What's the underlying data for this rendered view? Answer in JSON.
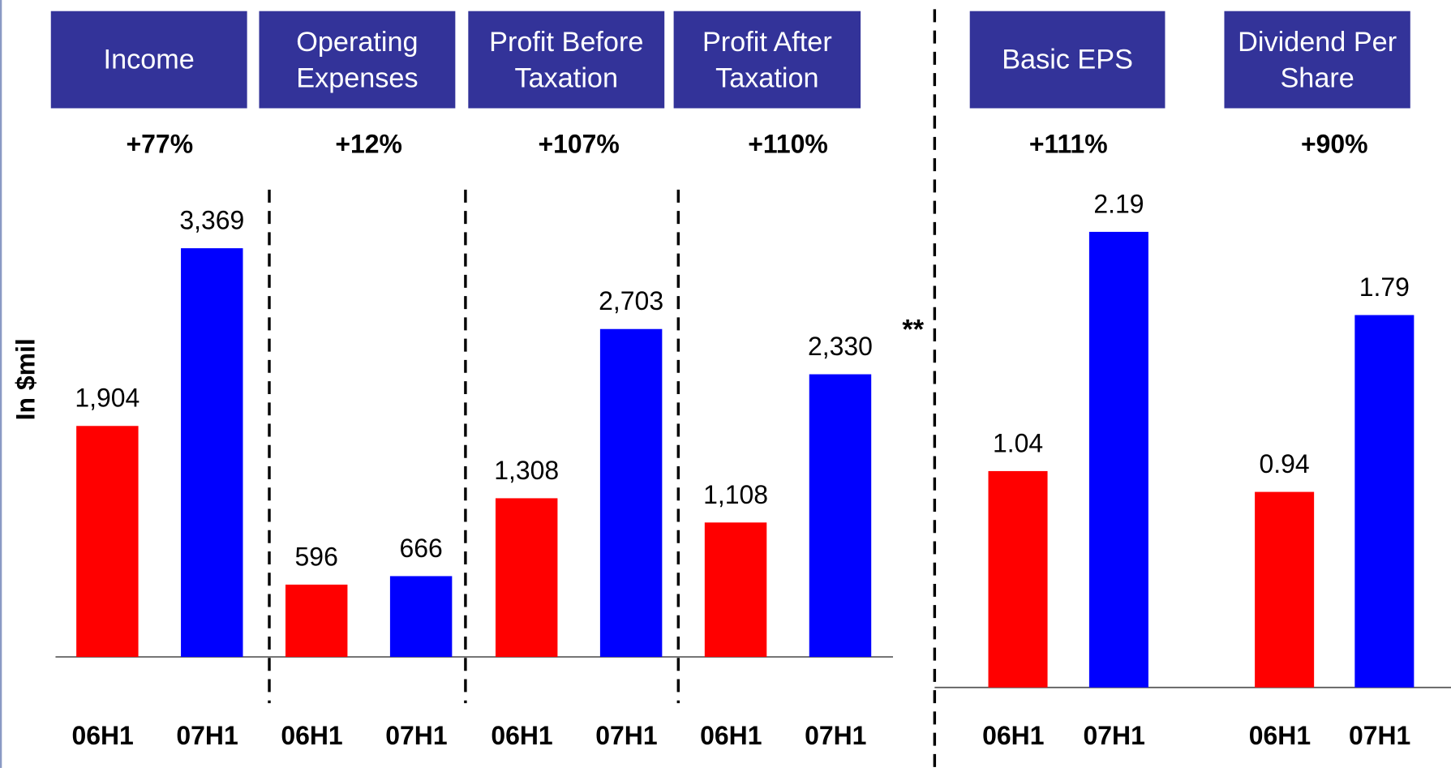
{
  "chart_data": [
    {
      "type": "bar",
      "y_label": "In $mil",
      "annotation": "**",
      "colors": [
        "#ff0000",
        "#0000ff"
      ],
      "ylim": [
        0,
        5400
      ],
      "groups": [
        {
          "title": "Income",
          "change": "+77%",
          "categories": [
            "06H1",
            "07H1"
          ],
          "values": [
            1904,
            3369
          ],
          "value_labels": [
            "1,904",
            "3,369"
          ]
        },
        {
          "title": "Operating Expenses",
          "change": "+12%",
          "categories": [
            "06H1",
            "07H1"
          ],
          "values": [
            596,
            666
          ]
        },
        {
          "title": "Profit Before Taxation",
          "change": "+107%",
          "categories": [
            "06H1",
            "07H1"
          ],
          "values": [
            1308,
            2703
          ],
          "value_labels": [
            "1,308",
            "2,703"
          ]
        },
        {
          "title": "Profit After Taxation",
          "change": "+110%",
          "categories": [
            "06H1",
            "07H1"
          ],
          "values": [
            1108,
            2330
          ],
          "value_labels": [
            "1,108",
            "2,330"
          ]
        }
      ]
    },
    {
      "type": "bar",
      "colors": [
        "#ff0000",
        "#0000ff"
      ],
      "ylim": [
        0,
        3.3
      ],
      "groups": [
        {
          "title": "Basic EPS",
          "change": "+111%",
          "categories": [
            "06H1",
            "07H1"
          ],
          "values": [
            1.04,
            2.19
          ]
        },
        {
          "title": "Dividend Per Share",
          "change": "+90%",
          "categories": [
            "06H1",
            "07H1"
          ],
          "values": [
            0.94,
            1.79
          ]
        }
      ]
    }
  ]
}
